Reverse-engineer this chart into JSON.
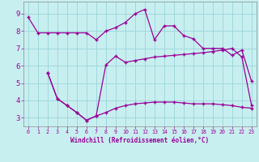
{
  "xlabel": "Windchill (Refroidissement éolien,°C)",
  "bg_color": "#c8eff0",
  "line_color": "#990099",
  "grid_color": "#a0d8dc",
  "xlim": [
    -0.5,
    23.5
  ],
  "ylim": [
    2.5,
    9.7
  ],
  "xticks": [
    0,
    1,
    2,
    3,
    4,
    5,
    6,
    7,
    8,
    9,
    10,
    11,
    12,
    13,
    14,
    15,
    16,
    17,
    18,
    19,
    20,
    21,
    22,
    23
  ],
  "yticks": [
    3,
    4,
    5,
    6,
    7,
    8,
    9
  ],
  "line1_x": [
    0,
    1,
    2,
    3,
    4,
    5,
    6,
    7,
    8,
    9,
    10,
    11,
    12,
    13,
    14,
    15,
    16,
    17,
    18,
    19,
    20,
    21,
    22,
    23
  ],
  "line1_y": [
    8.8,
    7.9,
    7.9,
    7.9,
    7.9,
    7.9,
    7.9,
    7.5,
    8.0,
    8.2,
    8.5,
    9.0,
    9.25,
    7.5,
    8.3,
    8.3,
    7.75,
    7.55,
    7.0,
    7.0,
    7.0,
    6.6,
    6.9,
    5.1
  ],
  "line2_x": [
    2,
    3,
    4,
    5,
    6,
    7,
    8,
    9,
    10,
    11,
    12,
    13,
    14,
    15,
    16,
    17,
    18,
    19,
    20,
    21,
    22,
    23
  ],
  "line2_y": [
    5.6,
    4.1,
    3.7,
    3.3,
    2.85,
    3.1,
    6.05,
    6.55,
    6.2,
    6.3,
    6.4,
    6.5,
    6.55,
    6.6,
    6.65,
    6.7,
    6.75,
    6.82,
    6.9,
    7.0,
    6.5,
    3.7
  ],
  "line3_x": [
    2,
    3,
    4,
    5,
    6,
    7,
    8,
    9,
    10,
    11,
    12,
    13,
    14,
    15,
    16,
    17,
    18,
    19,
    20,
    21,
    22,
    23
  ],
  "line3_y": [
    5.6,
    4.1,
    3.7,
    3.3,
    2.85,
    3.1,
    3.3,
    3.55,
    3.7,
    3.8,
    3.85,
    3.9,
    3.9,
    3.9,
    3.85,
    3.8,
    3.8,
    3.8,
    3.75,
    3.7,
    3.6,
    3.55
  ]
}
